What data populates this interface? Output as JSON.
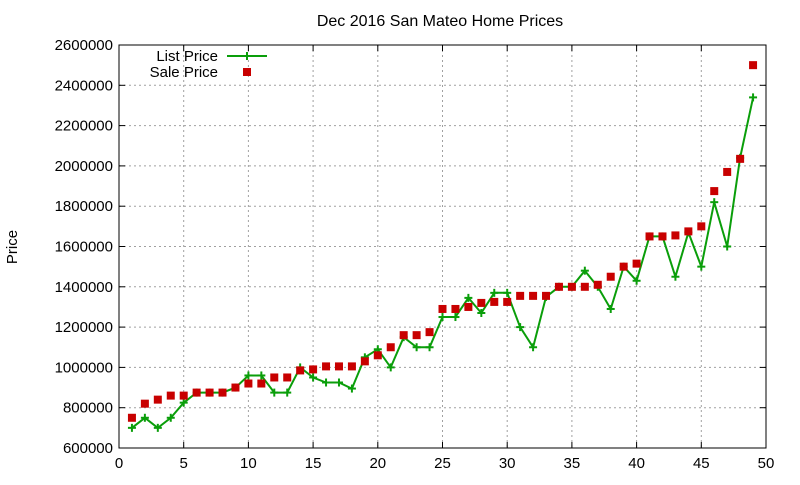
{
  "colors": {
    "list_price": "#0a9e0a",
    "sale_price": "#c80000",
    "grid": "#a0a0a0",
    "axis": "#000000"
  },
  "chart_data": {
    "type": "line",
    "title": "Dec 2016 San Mateo Home Prices",
    "xlabel": "",
    "ylabel": "Price",
    "xlim": [
      0,
      50
    ],
    "ylim": [
      600000,
      2600000
    ],
    "x_ticks": [
      "0",
      "5",
      "10",
      "15",
      "20",
      "25",
      "30",
      "35",
      "40",
      "45",
      "50"
    ],
    "y_ticks": [
      "600000",
      "800000",
      "1000000",
      "1200000",
      "1400000",
      "1600000",
      "1800000",
      "2000000",
      "2200000",
      "2400000",
      "2600000"
    ],
    "grid": true,
    "legend_position": "top-left",
    "series": [
      {
        "name": "List Price",
        "style": "line-with-plus-markers",
        "color": "#0a9e0a",
        "x": [
          1,
          2,
          3,
          4,
          5,
          6,
          7,
          8,
          9,
          10,
          11,
          12,
          13,
          14,
          15,
          16,
          17,
          18,
          19,
          20,
          21,
          22,
          23,
          24,
          25,
          26,
          27,
          28,
          29,
          30,
          31,
          32,
          33,
          34,
          35,
          36,
          37,
          38,
          39,
          40,
          41,
          42,
          43,
          44,
          45,
          46,
          47,
          48,
          49
        ],
        "values": [
          700000,
          750000,
          700000,
          750000,
          825000,
          875000,
          875000,
          875000,
          900000,
          960000,
          960000,
          875000,
          875000,
          1000000,
          950000,
          925000,
          925000,
          895000,
          1050000,
          1090000,
          1000000,
          1150000,
          1100000,
          1100000,
          1250000,
          1250000,
          1345000,
          1270000,
          1370000,
          1370000,
          1200000,
          1100000,
          1350000,
          1400000,
          1400000,
          1480000,
          1400000,
          1290000,
          1500000,
          1430000,
          1650000,
          1650000,
          1450000,
          1670000,
          1500000,
          1820000,
          1600000,
          2040000,
          2340000
        ]
      },
      {
        "name": "Sale Price",
        "style": "square-markers",
        "color": "#c80000",
        "x": [
          1,
          2,
          3,
          4,
          5,
          6,
          7,
          8,
          9,
          10,
          11,
          12,
          13,
          14,
          15,
          16,
          17,
          18,
          19,
          20,
          21,
          22,
          23,
          24,
          25,
          26,
          27,
          28,
          29,
          30,
          31,
          32,
          33,
          34,
          35,
          36,
          37,
          38,
          39,
          40,
          41,
          42,
          43,
          44,
          45,
          46,
          47,
          48,
          49
        ],
        "values": [
          750000,
          820000,
          840000,
          860000,
          860000,
          875000,
          875000,
          875000,
          900000,
          920000,
          920000,
          950000,
          950000,
          985000,
          990000,
          1005000,
          1005000,
          1005000,
          1030000,
          1060000,
          1100000,
          1160000,
          1160000,
          1175000,
          1290000,
          1290000,
          1300000,
          1320000,
          1325000,
          1325000,
          1355000,
          1355000,
          1355000,
          1400000,
          1400000,
          1400000,
          1410000,
          1450000,
          1500000,
          1515000,
          1650000,
          1650000,
          1655000,
          1675000,
          1700000,
          1875000,
          1970000,
          2035000,
          2500000
        ]
      }
    ]
  }
}
